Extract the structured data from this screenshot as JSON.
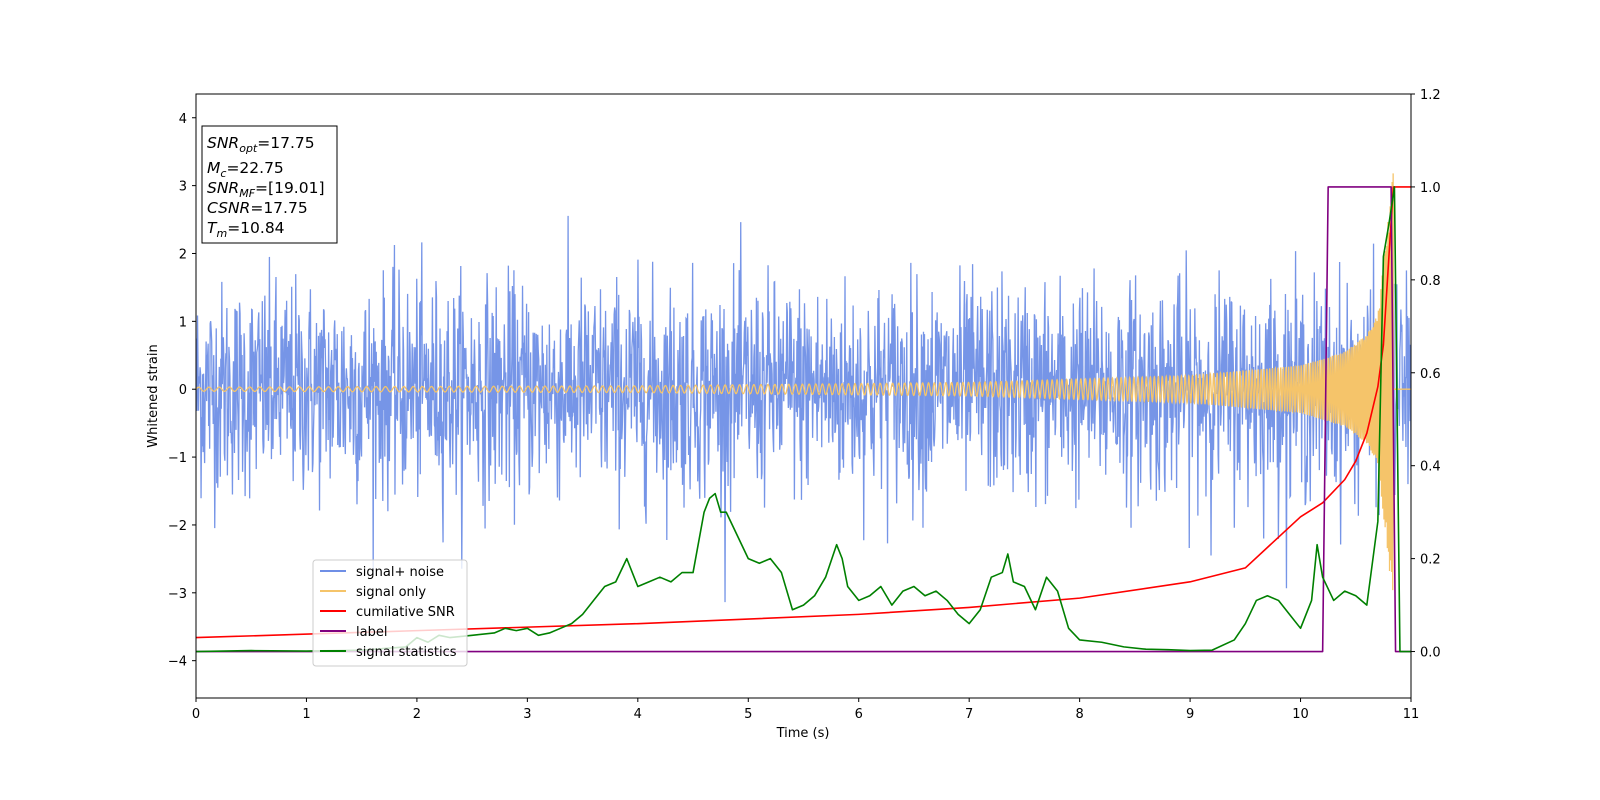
{
  "chart_data": {
    "type": "line",
    "xlabel": "Time (s)",
    "ylabel": "Whitened strain",
    "xlim": [
      0,
      11
    ],
    "ylim_left": [
      -4.55,
      4.35
    ],
    "ylim_right": [
      -0.1,
      1.2
    ],
    "x_ticks": [
      "0",
      "1",
      "2",
      "3",
      "4",
      "5",
      "6",
      "7",
      "8",
      "9",
      "10",
      "11"
    ],
    "y_ticks_left": [
      "−4",
      "−3",
      "−2",
      "−1",
      "0",
      "1",
      "2",
      "3",
      "4"
    ],
    "y_ticks_right": [
      "0.0",
      "0.2",
      "0.4",
      "0.6",
      "0.8",
      "1.0",
      "1.2"
    ],
    "legend_position": "lower-left",
    "annotation": [
      {
        "base": "SNR",
        "sub": "opt",
        "value": "=17.75"
      },
      {
        "base": "M",
        "sub": "c",
        "value": "=22.75"
      },
      {
        "base": "SNR",
        "sub": "MF",
        "value": "=[19.01]"
      },
      {
        "base": "CSNR",
        "sub": "",
        "value": "=17.75"
      },
      {
        "base": "T",
        "sub": "m",
        "value": "=10.84"
      }
    ],
    "series": [
      {
        "name": "signal+ noise",
        "axis": "left",
        "color": "#6f8fe6",
        "description": "whitened strain noise, envelope approx ±2.2 with spikes up to ±3.9"
      },
      {
        "name": "signal only",
        "axis": "left",
        "color": "#f5c46a",
        "description": "chirp with amplitude growing toward merger near t=10.84",
        "envelope": {
          "x": [
            0,
            4,
            7,
            9,
            10,
            10.4,
            10.6,
            10.7,
            10.8,
            10.84
          ],
          "y": [
            0.03,
            0.05,
            0.1,
            0.2,
            0.35,
            0.55,
            0.8,
            1.1,
            2.6,
            3.3
          ]
        }
      },
      {
        "name": "cumilative SNR",
        "axis": "right",
        "color": "#ff0000",
        "x": [
          0,
          2,
          4,
          6,
          7,
          8,
          9,
          9.5,
          10,
          10.2,
          10.4,
          10.5,
          10.6,
          10.7,
          10.75,
          10.8,
          10.84,
          11
        ],
        "y": [
          0.03,
          0.045,
          0.06,
          0.08,
          0.095,
          0.115,
          0.15,
          0.18,
          0.29,
          0.32,
          0.37,
          0.41,
          0.47,
          0.57,
          0.66,
          0.85,
          1.0,
          1.0
        ]
      },
      {
        "name": "label",
        "axis": "right",
        "color": "#800080",
        "x": [
          0,
          10.2,
          10.25,
          10.82,
          10.86,
          11
        ],
        "y": [
          0,
          0,
          1,
          1,
          0,
          0
        ]
      },
      {
        "name": "signal statistics",
        "axis": "right",
        "color": "#008000",
        "x": [
          0,
          0.5,
          1,
          1.5,
          1.9,
          2.0,
          2.1,
          2.2,
          2.3,
          2.5,
          2.7,
          2.8,
          2.9,
          3.0,
          3.1,
          3.2,
          3.3,
          3.4,
          3.5,
          3.6,
          3.7,
          3.8,
          3.9,
          4.0,
          4.1,
          4.2,
          4.3,
          4.4,
          4.5,
          4.6,
          4.65,
          4.7,
          4.75,
          4.8,
          4.9,
          5.0,
          5.1,
          5.2,
          5.3,
          5.4,
          5.5,
          5.6,
          5.7,
          5.8,
          5.85,
          5.9,
          6.0,
          6.1,
          6.2,
          6.3,
          6.4,
          6.5,
          6.6,
          6.7,
          6.8,
          6.9,
          7.0,
          7.1,
          7.2,
          7.3,
          7.35,
          7.4,
          7.5,
          7.6,
          7.7,
          7.8,
          7.9,
          8.0,
          8.2,
          8.4,
          8.6,
          8.8,
          9.0,
          9.2,
          9.4,
          9.5,
          9.6,
          9.7,
          9.8,
          9.9,
          10.0,
          10.1,
          10.15,
          10.2,
          10.3,
          10.4,
          10.5,
          10.6,
          10.7,
          10.75,
          10.8,
          10.85,
          10.9,
          11
        ],
        "y": [
          0.0,
          0.002,
          0.001,
          0.003,
          0.01,
          0.03,
          0.02,
          0.035,
          0.03,
          0.035,
          0.04,
          0.05,
          0.045,
          0.05,
          0.035,
          0.04,
          0.05,
          0.06,
          0.08,
          0.11,
          0.14,
          0.15,
          0.2,
          0.14,
          0.15,
          0.16,
          0.15,
          0.17,
          0.17,
          0.3,
          0.33,
          0.34,
          0.3,
          0.3,
          0.25,
          0.2,
          0.19,
          0.2,
          0.17,
          0.09,
          0.1,
          0.12,
          0.16,
          0.23,
          0.2,
          0.14,
          0.11,
          0.12,
          0.14,
          0.1,
          0.13,
          0.14,
          0.12,
          0.13,
          0.11,
          0.08,
          0.06,
          0.09,
          0.16,
          0.17,
          0.21,
          0.15,
          0.14,
          0.09,
          0.16,
          0.13,
          0.05,
          0.025,
          0.02,
          0.01,
          0.005,
          0.004,
          0.002,
          0.003,
          0.025,
          0.06,
          0.11,
          0.12,
          0.11,
          0.08,
          0.05,
          0.11,
          0.23,
          0.16,
          0.11,
          0.13,
          0.12,
          0.1,
          0.28,
          0.85,
          0.92,
          1.0,
          0.0,
          0.0
        ]
      }
    ]
  }
}
